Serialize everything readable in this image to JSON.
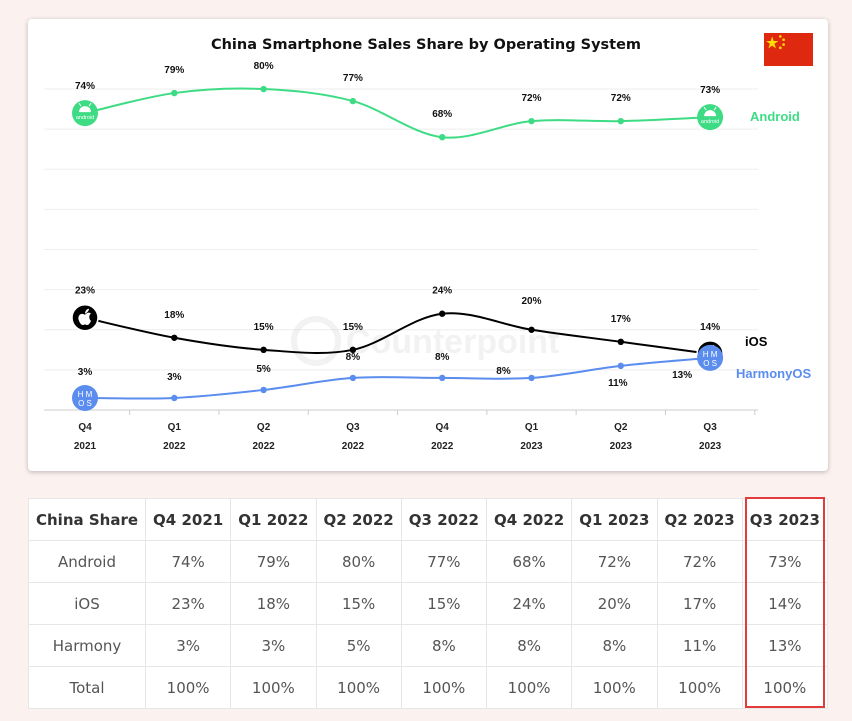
{
  "chart_data": {
    "type": "line",
    "title": "China Smartphone Sales Share by Operating System",
    "categories": [
      [
        "Q4",
        "2021"
      ],
      [
        "Q1",
        "2022"
      ],
      [
        "Q2",
        "2022"
      ],
      [
        "Q3",
        "2022"
      ],
      [
        "Q4",
        "2022"
      ],
      [
        "Q1",
        "2023"
      ],
      [
        "Q2",
        "2023"
      ],
      [
        "Q3",
        "2023"
      ]
    ],
    "series": [
      {
        "name": "Android",
        "values": [
          74,
          79,
          80,
          77,
          68,
          72,
          72,
          73
        ],
        "labels": [
          "74%",
          "79%",
          "80%",
          "77%",
          "68%",
          "72%",
          "72%",
          "73%"
        ],
        "color": "#3ddc84",
        "icon": "android-logo-icon"
      },
      {
        "name": "iOS",
        "values": [
          23,
          18,
          15,
          15,
          24,
          20,
          17,
          14
        ],
        "labels": [
          "23%",
          "18%",
          "15%",
          "15%",
          "24%",
          "20%",
          "17%",
          "14%"
        ],
        "color": "#000000",
        "icon": "apple-logo-icon"
      },
      {
        "name": "HarmonyOS",
        "values": [
          3,
          3,
          5,
          8,
          8,
          8,
          11,
          13
        ],
        "labels": [
          "3%",
          "3%",
          "5%",
          "8%",
          "8%",
          "8%",
          "11%",
          "13%"
        ],
        "color": "#5b8def",
        "icon": "hmos-logo-icon",
        "icon_text": [
          "H M",
          "O S"
        ]
      }
    ],
    "android_icon_text": "android",
    "ylim": [
      0,
      85
    ],
    "grid": true,
    "legend": "inline-right",
    "watermark": "Counterpoint"
  },
  "table": {
    "headers": [
      "China Share",
      "Q4 2021",
      "Q1 2022",
      "Q2 2022",
      "Q3 2022",
      "Q4 2022",
      "Q1 2023",
      "Q2 2023",
      "Q3 2023"
    ],
    "rows": [
      [
        "Android",
        "74%",
        "79%",
        "80%",
        "77%",
        "68%",
        "72%",
        "72%",
        "73%"
      ],
      [
        "iOS",
        "23%",
        "18%",
        "15%",
        "15%",
        "24%",
        "20%",
        "17%",
        "14%"
      ],
      [
        "Harmony",
        "3%",
        "3%",
        "5%",
        "8%",
        "8%",
        "8%",
        "11%",
        "13%"
      ],
      [
        "Total",
        "100%",
        "100%",
        "100%",
        "100%",
        "100%",
        "100%",
        "100%",
        "100%"
      ]
    ],
    "highlight_column": "Q3 2023",
    "highlight_color": "#e23b3b"
  },
  "flag_colors": {
    "field": "#de2910",
    "stars": "#ffde00"
  }
}
